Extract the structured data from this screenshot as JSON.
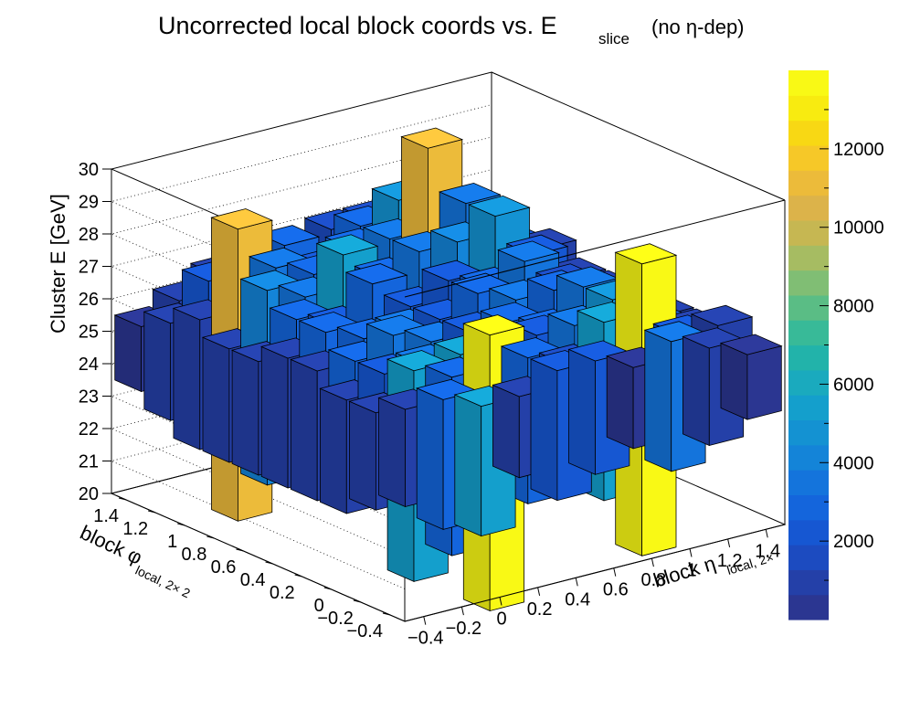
{
  "chart_data": {
    "type": "bar3d",
    "title": {
      "main": "Uncorrected local block coords vs. E",
      "subscript": "slice",
      "suffix": "(no η-dep)"
    },
    "xaxis": {
      "label_main": "block η",
      "label_sub": "local, 2×",
      "range": [
        -0.5,
        1.5
      ],
      "ticks": [
        "−0.4",
        "−0.2",
        "0",
        "0.2",
        "0.4",
        "0.6",
        "0.8",
        "1",
        "1.2",
        "1.4"
      ]
    },
    "yaxis": {
      "label_main": "block φ",
      "label_sub": "local, 2× 2",
      "range": [
        -0.5,
        1.5
      ],
      "ticks": [
        "−0.4",
        "−0.2",
        "0",
        "0.2",
        "0.4",
        "0.6",
        "0.8",
        "1",
        "1.2",
        "1.4"
      ]
    },
    "zaxis": {
      "label": "Cluster E  [GeV]",
      "range": [
        20,
        30
      ],
      "ticks": [
        "20",
        "21",
        "22",
        "23",
        "24",
        "25",
        "26",
        "27",
        "28",
        "29",
        "30"
      ]
    },
    "colorbar": {
      "range": [
        0,
        14000
      ],
      "ticks": [
        "2000",
        "4000",
        "6000",
        "8000",
        "10000",
        "12000"
      ],
      "tick_values": [
        2000,
        4000,
        6000,
        8000,
        10000,
        12000
      ]
    },
    "grid": true,
    "palette": [
      "#2b3691",
      "#2440a8",
      "#1c4bc0",
      "#1657d2",
      "#1465dc",
      "#1474dc",
      "#1484d8",
      "#1492d2",
      "#149fcc",
      "#1aaabe",
      "#22b3aa",
      "#38ba98",
      "#5abd85",
      "#80be74",
      "#a6bc62",
      "#c6b752",
      "#dcb34a",
      "#ecbb3a",
      "#f6c828",
      "#f8d814",
      "#f8eb10",
      "#f9f915"
    ],
    "bars": [
      {
        "x": -0.4,
        "y": -0.4,
        "z0": 23.5,
        "z1": 26.5,
        "count": 900
      },
      {
        "x": -0.2,
        "y": -0.4,
        "z0": 22.5,
        "z1": 26.5,
        "count": 2600
      },
      {
        "x": 0.0,
        "y": -0.4,
        "z0": 22.0,
        "z1": 26.0,
        "count": 5200
      },
      {
        "x": 0.2,
        "y": -0.4,
        "z0": 23.5,
        "z1": 26.0,
        "count": 700
      },
      {
        "x": 0.4,
        "y": -0.4,
        "z0": 22.5,
        "z1": 26.5,
        "count": 2400
      },
      {
        "x": 0.6,
        "y": -0.4,
        "z0": 23.0,
        "z1": 26.5,
        "count": 2300
      },
      {
        "x": 0.8,
        "y": -0.4,
        "z0": 23.5,
        "z1": 26.0,
        "count": 600
      },
      {
        "x": 1.0,
        "y": -0.4,
        "z0": 22.5,
        "z1": 26.5,
        "count": 3800
      },
      {
        "x": 1.2,
        "y": -0.4,
        "z0": 23.0,
        "z1": 26.0,
        "count": 1200
      },
      {
        "x": 1.4,
        "y": -0.4,
        "z0": 23.5,
        "z1": 25.5,
        "count": 500
      },
      {
        "x": -0.4,
        "y": -0.2,
        "z0": 23.0,
        "z1": 26.0,
        "count": 700
      },
      {
        "x": -0.2,
        "y": -0.2,
        "z0": 20.5,
        "z1": 27.0,
        "count": 5600
      },
      {
        "x": 0.0,
        "y": -0.2,
        "z0": 21.0,
        "z1": 26.5,
        "count": 2600
      },
      {
        "x": 0.2,
        "y": -0.2,
        "z0": 19.0,
        "z1": 27.5,
        "count": 14000
      },
      {
        "x": 0.4,
        "y": -0.2,
        "z0": 22.0,
        "z1": 26.5,
        "count": 3000
      },
      {
        "x": 0.6,
        "y": -0.2,
        "z0": 22.5,
        "z1": 26.0,
        "count": 1600
      },
      {
        "x": 0.8,
        "y": -0.2,
        "z0": 21.5,
        "z1": 27.0,
        "count": 5200
      },
      {
        "x": 1.0,
        "y": -0.2,
        "z0": 19.5,
        "z1": 28.5,
        "count": 14000
      },
      {
        "x": 1.2,
        "y": -0.2,
        "z0": 22.5,
        "z1": 26.0,
        "count": 2300
      },
      {
        "x": 1.4,
        "y": -0.2,
        "z0": 23.0,
        "z1": 26.0,
        "count": 800
      },
      {
        "x": -0.4,
        "y": 0.0,
        "z0": 22.5,
        "z1": 26.0,
        "count": 700
      },
      {
        "x": -0.2,
        "y": 0.0,
        "z0": 22.5,
        "z1": 26.5,
        "count": 2400
      },
      {
        "x": 0.0,
        "y": 0.0,
        "z0": 22.0,
        "z1": 26.5,
        "count": 3200
      },
      {
        "x": 0.2,
        "y": 0.0,
        "z0": 21.5,
        "z1": 26.5,
        "count": 5400
      },
      {
        "x": 0.4,
        "y": 0.0,
        "z0": 22.5,
        "z1": 26.0,
        "count": 2600
      },
      {
        "x": 0.6,
        "y": 0.0,
        "z0": 22.5,
        "z1": 26.5,
        "count": 2400
      },
      {
        "x": 0.8,
        "y": 0.0,
        "z0": 22.0,
        "z1": 26.5,
        "count": 3400
      },
      {
        "x": 1.0,
        "y": 0.0,
        "z0": 22.0,
        "z1": 27.0,
        "count": 5000
      },
      {
        "x": 1.2,
        "y": 0.0,
        "z0": 22.5,
        "z1": 26.0,
        "count": 2200
      },
      {
        "x": 1.4,
        "y": 0.0,
        "z0": 23.0,
        "z1": 25.5,
        "count": 700
      },
      {
        "x": -0.4,
        "y": 0.2,
        "z0": 22.5,
        "z1": 26.5,
        "count": 800
      },
      {
        "x": -0.2,
        "y": 0.2,
        "z0": 22.5,
        "z1": 26.5,
        "count": 2700
      },
      {
        "x": 0.0,
        "y": 0.2,
        "z0": 22.0,
        "z1": 27.0,
        "count": 3200
      },
      {
        "x": 0.2,
        "y": 0.2,
        "z0": 21.5,
        "z1": 26.5,
        "count": 3600
      },
      {
        "x": 0.4,
        "y": 0.2,
        "z0": 22.5,
        "z1": 26.5,
        "count": 2500
      },
      {
        "x": 0.6,
        "y": 0.2,
        "z0": 22.0,
        "z1": 26.5,
        "count": 2800
      },
      {
        "x": 0.8,
        "y": 0.2,
        "z0": 22.5,
        "z1": 26.0,
        "count": 3000
      },
      {
        "x": 1.0,
        "y": 0.2,
        "z0": 22.0,
        "z1": 27.0,
        "count": 3600
      },
      {
        "x": 1.2,
        "y": 0.2,
        "z0": 22.5,
        "z1": 26.0,
        "count": 1800
      },
      {
        "x": 1.4,
        "y": 0.2,
        "z0": 23.0,
        "z1": 25.5,
        "count": 700
      },
      {
        "x": -0.4,
        "y": 0.4,
        "z0": 22.5,
        "z1": 26.5,
        "count": 700
      },
      {
        "x": -0.2,
        "y": 0.4,
        "z0": 22.0,
        "z1": 27.0,
        "count": 2600
      },
      {
        "x": 0.0,
        "y": 0.4,
        "z0": 22.5,
        "z1": 26.5,
        "count": 3000
      },
      {
        "x": 0.2,
        "y": 0.4,
        "z0": 22.0,
        "z1": 26.5,
        "count": 3400
      },
      {
        "x": 0.4,
        "y": 0.4,
        "z0": 22.5,
        "z1": 26.5,
        "count": 2300
      },
      {
        "x": 0.6,
        "y": 0.4,
        "z0": 22.5,
        "z1": 27.0,
        "count": 2600
      },
      {
        "x": 0.8,
        "y": 0.4,
        "z0": 22.0,
        "z1": 26.5,
        "count": 3200
      },
      {
        "x": 1.0,
        "y": 0.4,
        "z0": 22.5,
        "z1": 26.5,
        "count": 3000
      },
      {
        "x": 1.2,
        "y": 0.4,
        "z0": 22.5,
        "z1": 26.0,
        "count": 1700
      },
      {
        "x": 1.4,
        "y": 0.4,
        "z0": 23.0,
        "z1": 25.5,
        "count": 700
      },
      {
        "x": -0.4,
        "y": 0.6,
        "z0": 22.5,
        "z1": 26.0,
        "count": 700
      },
      {
        "x": -0.2,
        "y": 0.6,
        "z0": 22.0,
        "z1": 27.0,
        "count": 3000
      },
      {
        "x": 0.0,
        "y": 0.6,
        "z0": 22.5,
        "z1": 26.5,
        "count": 2500
      },
      {
        "x": 0.2,
        "y": 0.6,
        "z0": 22.0,
        "z1": 27.5,
        "count": 2700
      },
      {
        "x": 0.4,
        "y": 0.6,
        "z0": 22.5,
        "z1": 26.5,
        "count": 2200
      },
      {
        "x": 0.6,
        "y": 0.6,
        "z0": 22.0,
        "z1": 27.0,
        "count": 2500
      },
      {
        "x": 0.8,
        "y": 0.6,
        "z0": 22.5,
        "z1": 26.5,
        "count": 2900
      },
      {
        "x": 1.0,
        "y": 0.6,
        "z0": 22.5,
        "z1": 27.0,
        "count": 3200
      },
      {
        "x": 1.2,
        "y": 0.6,
        "z0": 22.5,
        "z1": 26.0,
        "count": 1800
      },
      {
        "x": 1.4,
        "y": 0.6,
        "z0": 23.0,
        "z1": 25.5,
        "count": 700
      },
      {
        "x": -0.4,
        "y": 0.8,
        "z0": 22.5,
        "z1": 26.0,
        "count": 800
      },
      {
        "x": -0.2,
        "y": 0.8,
        "z0": 21.5,
        "z1": 27.5,
        "count": 4400
      },
      {
        "x": 0.0,
        "y": 0.8,
        "z0": 22.0,
        "z1": 27.0,
        "count": 3400
      },
      {
        "x": 0.2,
        "y": 0.8,
        "z0": 21.0,
        "z1": 28.0,
        "count": 5500
      },
      {
        "x": 0.4,
        "y": 0.8,
        "z0": 22.0,
        "z1": 27.0,
        "count": 2600
      },
      {
        "x": 0.6,
        "y": 0.8,
        "z0": 22.0,
        "z1": 27.5,
        "count": 3200
      },
      {
        "x": 0.8,
        "y": 0.8,
        "z0": 21.5,
        "z1": 27.5,
        "count": 4300
      },
      {
        "x": 1.0,
        "y": 0.8,
        "z0": 21.0,
        "z1": 28.0,
        "count": 5000
      },
      {
        "x": 1.2,
        "y": 0.8,
        "z0": 22.5,
        "z1": 26.5,
        "count": 2200
      },
      {
        "x": 1.4,
        "y": 0.8,
        "z0": 23.0,
        "z1": 25.5,
        "count": 700
      },
      {
        "x": -0.4,
        "y": 1.0,
        "z0": 22.5,
        "z1": 26.5,
        "count": 800
      },
      {
        "x": -0.2,
        "y": 1.0,
        "z0": 20.0,
        "z1": 29.0,
        "count": 11000
      },
      {
        "x": 0.0,
        "y": 1.0,
        "z0": 21.5,
        "z1": 27.5,
        "count": 3800
      },
      {
        "x": 0.2,
        "y": 1.0,
        "z0": 22.0,
        "z1": 27.0,
        "count": 2900
      },
      {
        "x": 0.4,
        "y": 1.0,
        "z0": 21.5,
        "z1": 27.5,
        "count": 3000
      },
      {
        "x": 0.6,
        "y": 1.0,
        "z0": 22.0,
        "z1": 27.5,
        "count": 3400
      },
      {
        "x": 0.8,
        "y": 1.0,
        "z0": 20.0,
        "z1": 30.0,
        "count": 11000
      },
      {
        "x": 1.0,
        "y": 1.0,
        "z0": 21.5,
        "z1": 28.0,
        "count": 3800
      },
      {
        "x": 1.2,
        "y": 1.0,
        "z0": 22.5,
        "z1": 26.5,
        "count": 2000
      },
      {
        "x": 1.4,
        "y": 1.0,
        "z0": 23.0,
        "z1": 26.0,
        "count": 800
      },
      {
        "x": -0.4,
        "y": 1.2,
        "z0": 23.0,
        "z1": 26.0,
        "count": 700
      },
      {
        "x": -0.2,
        "y": 1.2,
        "z0": 22.5,
        "z1": 27.0,
        "count": 2000
      },
      {
        "x": 0.0,
        "y": 1.2,
        "z0": 22.5,
        "z1": 26.5,
        "count": 2500
      },
      {
        "x": 0.2,
        "y": 1.2,
        "z0": 22.0,
        "z1": 27.5,
        "count": 2600
      },
      {
        "x": 0.4,
        "y": 1.2,
        "z0": 22.5,
        "z1": 26.5,
        "count": 2200
      },
      {
        "x": 0.6,
        "y": 1.2,
        "z0": 22.0,
        "z1": 27.5,
        "count": 2800
      },
      {
        "x": 0.8,
        "y": 1.2,
        "z0": 22.0,
        "z1": 28.0,
        "count": 4800
      },
      {
        "x": 1.0,
        "y": 1.2,
        "z0": 22.5,
        "z1": 27.0,
        "count": 2400
      },
      {
        "x": 1.2,
        "y": 1.2,
        "z0": 23.0,
        "z1": 26.0,
        "count": 1500
      },
      {
        "x": 1.4,
        "y": 1.2,
        "z0": 23.5,
        "z1": 25.5,
        "count": 600
      },
      {
        "x": -0.4,
        "y": 1.4,
        "z0": 23.5,
        "z1": 25.5,
        "count": 500
      },
      {
        "x": -0.2,
        "y": 1.4,
        "z0": 23.0,
        "z1": 26.0,
        "count": 900
      },
      {
        "x": 0.0,
        "y": 1.4,
        "z0": 23.0,
        "z1": 26.5,
        "count": 1000
      },
      {
        "x": 0.2,
        "y": 1.4,
        "z0": 22.5,
        "z1": 27.0,
        "count": 1400
      },
      {
        "x": 0.4,
        "y": 1.4,
        "z0": 23.0,
        "z1": 26.5,
        "count": 1100
      },
      {
        "x": 0.6,
        "y": 1.4,
        "z0": 22.5,
        "z1": 27.0,
        "count": 1300
      },
      {
        "x": 0.8,
        "y": 1.4,
        "z0": 22.5,
        "z1": 27.0,
        "count": 1500
      },
      {
        "x": 1.0,
        "y": 1.4,
        "z0": 23.0,
        "z1": 26.5,
        "count": 1000
      },
      {
        "x": 1.2,
        "y": 1.4,
        "z0": 23.0,
        "z1": 26.0,
        "count": 800
      },
      {
        "x": 1.4,
        "y": 1.4,
        "z0": 23.5,
        "z1": 25.5,
        "count": 500
      }
    ]
  }
}
